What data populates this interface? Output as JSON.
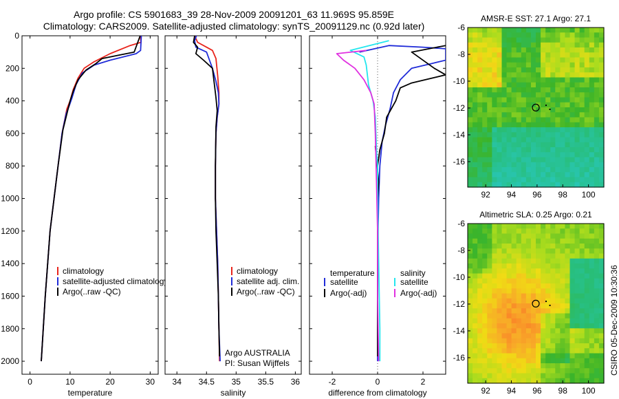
{
  "title_line1": "Argo profile: CS 5901683_39 28-Nov-2009 20091201_63 11.969S 95.859E",
  "title_line2": "Climatology: CARS2009. Satellite-adjusted climatology: synTS_20091129.nc (0.92d later)",
  "colors": {
    "red": "#e8231a",
    "blue": "#1f2bd8",
    "black": "#000000",
    "cyan": "#22e6ee",
    "magenta": "#e030e0"
  },
  "chart_data": [
    {
      "type": "line",
      "id": "temperature",
      "xlabel": "temperature",
      "ylabel": "",
      "xlim": [
        -2,
        32
      ],
      "ylim": [
        0,
        2080
      ],
      "y_reversed": true,
      "xticks": [
        0,
        10,
        20,
        30
      ],
      "xticklabels": [
        "0",
        "10",
        "20",
        "30"
      ],
      "yticks": [
        0,
        200,
        400,
        600,
        800,
        1000,
        1200,
        1400,
        1600,
        1800,
        2000
      ],
      "yticklabels": [
        "0",
        "200",
        "400",
        "600",
        "800",
        "1000",
        "1200",
        "1400",
        "1600",
        "1800",
        "2000"
      ],
      "legend": [
        "climatology",
        "satellite-adjusted climatology",
        "Argo(..raw -QC)"
      ],
      "series": [
        {
          "name": "climatology",
          "color": "red",
          "points": [
            [
              27.5,
              0
            ],
            [
              27.7,
              40
            ],
            [
              25,
              60
            ],
            [
              20,
              110
            ],
            [
              16,
              160
            ],
            [
              13.5,
              200
            ],
            [
              12,
              260
            ],
            [
              10.8,
              330
            ],
            [
              10,
              400
            ],
            [
              9.2,
              450
            ],
            [
              8,
              600
            ],
            [
              7,
              800
            ],
            [
              6,
              1000
            ],
            [
              5,
              1200
            ],
            [
              4.4,
              1400
            ],
            [
              3.8,
              1600
            ],
            [
              3.3,
              1800
            ],
            [
              2.8,
              2000
            ]
          ]
        },
        {
          "name": "satellite-adjusted climatology",
          "color": "blue",
          "points": [
            [
              27.8,
              0
            ],
            [
              27.6,
              90
            ],
            [
              26.5,
              110
            ],
            [
              20,
              150
            ],
            [
              16,
              180
            ],
            [
              13,
              230
            ],
            [
              11.5,
              300
            ],
            [
              10.5,
              380
            ],
            [
              9.8,
              430
            ],
            [
              9,
              480
            ],
            [
              8,
              600
            ],
            [
              7,
              800
            ],
            [
              6,
              1000
            ],
            [
              5,
              1200
            ],
            [
              4.4,
              1400
            ],
            [
              3.8,
              1600
            ],
            [
              3.3,
              1800
            ],
            [
              2.8,
              2000
            ]
          ]
        },
        {
          "name": "Argo(..raw -QC)",
          "color": "black",
          "points": [
            [
              27.5,
              0
            ],
            [
              26,
              100
            ],
            [
              22,
              120
            ],
            [
              18,
              140
            ],
            [
              16.5,
              170
            ],
            [
              14,
              210
            ],
            [
              12,
              270
            ],
            [
              10.8,
              340
            ],
            [
              10,
              400
            ],
            [
              9.3,
              470
            ],
            [
              8.2,
              580
            ],
            [
              7,
              800
            ],
            [
              6,
              1000
            ],
            [
              5,
              1200
            ],
            [
              4.4,
              1400
            ],
            [
              3.8,
              1600
            ],
            [
              3.3,
              1800
            ],
            [
              2.8,
              2000
            ]
          ]
        }
      ]
    },
    {
      "type": "line",
      "id": "salinity",
      "xlabel": "salinity",
      "xlim": [
        33.8,
        36.1
      ],
      "ylim": [
        0,
        2080
      ],
      "y_reversed": true,
      "xticks": [
        34,
        34.5,
        35,
        35.5,
        36
      ],
      "xticklabels": [
        "34",
        "34.5",
        "35",
        "35.5",
        "36"
      ],
      "legend": [
        "climatology",
        "satellite adj. clim.",
        "Argo(..raw -QC)"
      ],
      "annotation": [
        "Argo AUSTRALIA",
        "PI: Susan Wijffels"
      ],
      "series": [
        {
          "name": "climatology",
          "color": "red",
          "points": [
            [
              34.3,
              0
            ],
            [
              34.35,
              40
            ],
            [
              34.5,
              70
            ],
            [
              34.6,
              90
            ],
            [
              34.66,
              140
            ],
            [
              34.69,
              250
            ],
            [
              34.71,
              350
            ],
            [
              34.71,
              420
            ],
            [
              34.68,
              500
            ],
            [
              34.66,
              600
            ],
            [
              34.65,
              800
            ],
            [
              34.65,
              1000
            ],
            [
              34.67,
              1200
            ],
            [
              34.69,
              1400
            ],
            [
              34.7,
              1600
            ],
            [
              34.71,
              1800
            ],
            [
              34.72,
              2000
            ]
          ]
        },
        {
          "name": "satellite adj. clim.",
          "color": "blue",
          "points": [
            [
              34.33,
              0
            ],
            [
              34.3,
              30
            ],
            [
              34.32,
              70
            ],
            [
              34.5,
              100
            ],
            [
              34.55,
              150
            ],
            [
              34.6,
              200
            ],
            [
              34.66,
              280
            ],
            [
              34.7,
              350
            ],
            [
              34.71,
              420
            ],
            [
              34.68,
              500
            ],
            [
              34.66,
              600
            ],
            [
              34.65,
              800
            ],
            [
              34.65,
              1000
            ],
            [
              34.67,
              1200
            ],
            [
              34.69,
              1400
            ],
            [
              34.7,
              1600
            ],
            [
              34.71,
              1800
            ],
            [
              34.73,
              2000
            ]
          ]
        },
        {
          "name": "Argo(..raw -QC)",
          "color": "black",
          "points": [
            [
              34.3,
              0
            ],
            [
              34.28,
              40
            ],
            [
              34.35,
              70
            ],
            [
              34.32,
              110
            ],
            [
              34.45,
              150
            ],
            [
              34.6,
              200
            ],
            [
              34.62,
              260
            ],
            [
              34.64,
              320
            ],
            [
              34.66,
              380
            ],
            [
              34.68,
              460
            ],
            [
              34.66,
              560
            ],
            [
              34.65,
              800
            ],
            [
              34.65,
              1000
            ],
            [
              34.66,
              1200
            ],
            [
              34.68,
              1400
            ],
            [
              34.7,
              1600
            ],
            [
              34.71,
              1800
            ],
            [
              34.72,
              1970
            ]
          ]
        }
      ]
    },
    {
      "type": "line",
      "id": "difference",
      "xlabel": "difference from climatology",
      "xlim": [
        -3,
        3
      ],
      "ylim": [
        0,
        2080
      ],
      "y_reversed": true,
      "xticks": [
        -2,
        0,
        2
      ],
      "xticklabels": [
        "-2",
        "0",
        "2"
      ],
      "legend_headers": [
        "temperature",
        "salinity"
      ],
      "legend": [
        "satellite",
        "Argo(-adj)",
        "satellite",
        "Argo(-adj)"
      ],
      "series": [
        {
          "name": "temperature satellite",
          "color": "blue",
          "points": [
            [
              -0.8,
              100
            ],
            [
              0.5,
              60
            ],
            [
              2,
              70
            ],
            [
              3,
              80
            ],
            [
              3,
              150
            ],
            [
              2.4,
              170
            ],
            [
              1.5,
              200
            ],
            [
              1,
              270
            ],
            [
              0.7,
              350
            ],
            [
              0.55,
              450
            ],
            [
              0.35,
              550
            ],
            [
              0.2,
              650
            ],
            [
              0.1,
              800
            ],
            [
              0.05,
              1000
            ],
            [
              0.02,
              1200
            ],
            [
              0,
              1500
            ],
            [
              0,
              2000
            ]
          ]
        },
        {
          "name": "temperature Argo(-adj)",
          "color": "black",
          "points": [
            [
              3,
              60
            ],
            [
              1.5,
              100
            ],
            [
              2.5,
              200
            ],
            [
              3,
              240
            ],
            [
              1.5,
              290
            ],
            [
              1,
              320
            ],
            [
              0.8,
              400
            ],
            [
              0.4,
              500
            ],
            [
              0.3,
              600
            ],
            [
              0.1,
              700
            ],
            [
              0,
              800
            ],
            [
              -0.1,
              680
            ],
            [
              0.05,
              900
            ],
            [
              0,
              1000
            ],
            [
              0,
              1500
            ],
            [
              0,
              1970
            ]
          ]
        },
        {
          "name": "salinity satellite",
          "color": "cyan",
          "points": [
            [
              0.5,
              30
            ],
            [
              -1.2,
              90
            ],
            [
              -0.6,
              130
            ],
            [
              -0.5,
              180
            ],
            [
              -0.4,
              300
            ],
            [
              -0.2,
              400
            ],
            [
              -0.1,
              500
            ],
            [
              -0.05,
              700
            ],
            [
              0,
              800
            ],
            [
              0,
              1000
            ],
            [
              0.05,
              1400
            ],
            [
              0.1,
              1800
            ],
            [
              0.1,
              2000
            ]
          ]
        },
        {
          "name": "salinity Argo(-adj)",
          "color": "magenta",
          "points": [
            [
              -0.5,
              90
            ],
            [
              -1.8,
              110
            ],
            [
              -1.5,
              150
            ],
            [
              -1,
              200
            ],
            [
              -0.6,
              270
            ],
            [
              -0.3,
              350
            ],
            [
              -0.15,
              420
            ],
            [
              -0.1,
              600
            ],
            [
              -0.05,
              900
            ],
            [
              0,
              1200
            ],
            [
              0,
              1600
            ],
            [
              0.05,
              2000
            ]
          ]
        }
      ]
    },
    {
      "type": "heatmap",
      "id": "sst-map",
      "title": "AMSR-E SST: 27.1 Argo: 27.1",
      "xlim": [
        90.6,
        101.2
      ],
      "ylim": [
        -17.9,
        -6
      ],
      "xticks": [
        92,
        94,
        96,
        98,
        100
      ],
      "yticks": [
        -6,
        -8,
        -10,
        -12,
        -14,
        -16
      ],
      "argo_position": [
        95.9,
        -11.97
      ],
      "argo_track": [
        [
          96.7,
          -11.8
        ],
        [
          97,
          -12.1
        ]
      ]
    },
    {
      "type": "heatmap",
      "id": "sla-map",
      "title": "Altimetric SLA: 0.25 Argo: 0.21",
      "xlim": [
        90.6,
        101.2
      ],
      "ylim": [
        -17.9,
        -6
      ],
      "xticks": [
        92,
        94,
        96,
        98,
        100
      ],
      "yticks": [
        -6,
        -8,
        -10,
        -12,
        -14,
        -16
      ],
      "argo_position": [
        95.9,
        -11.97
      ],
      "argo_track": [
        [
          96.7,
          -11.8
        ],
        [
          97,
          -12.1
        ]
      ]
    }
  ],
  "footer_vertical": "CSIRO 05-Dec-2009 10:30:36"
}
